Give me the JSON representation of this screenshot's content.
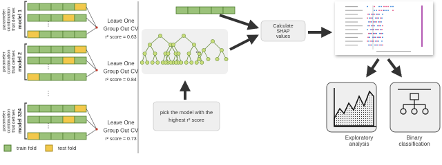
{
  "models": [
    {
      "label_lines": [
        "parameter",
        "combination",
        "that defines"
      ],
      "name": "model 1",
      "cv_lines": [
        "Leave One",
        "Group Out CV",
        "r² score = 0.63"
      ]
    },
    {
      "label_lines": [
        "parameter",
        "combination",
        "that defines"
      ],
      "name": "model 2",
      "cv_lines": [
        "Leave One",
        "Group Out CV",
        "r² score = 0.84"
      ]
    },
    {
      "label_lines": [
        "parameter",
        "combination",
        "that defines"
      ],
      "name": "model 324",
      "cv_lines": [
        "Leave One",
        "Group Out CV",
        "r² score = 0.73"
      ]
    }
  ],
  "legend": {
    "train": "train fold",
    "test": "test fold"
  },
  "pick_box": [
    "pick the model with the",
    "highest r² score"
  ],
  "shap_box": [
    "Calculate",
    "SHAP",
    "values"
  ],
  "outputs": [
    {
      "lines": [
        "Exploratory",
        "analysis"
      ]
    },
    {
      "lines": [
        "Binary",
        "classification"
      ]
    }
  ]
}
